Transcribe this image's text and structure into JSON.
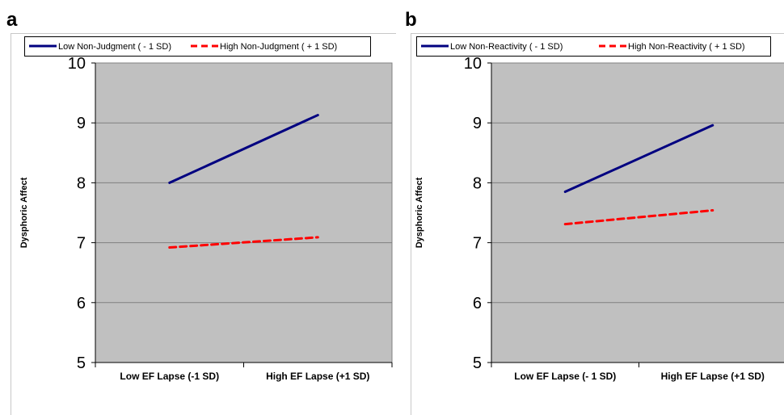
{
  "chart_data": [
    {
      "panel_label": "a",
      "type": "line",
      "categories": [
        "Low EF Lapse (-1 SD)",
        "High EF Lapse (+1 SD)"
      ],
      "series": [
        {
          "name": "Low Non-Judgment ( - 1 SD)",
          "values": [
            8.0,
            9.13
          ],
          "color": "#000080",
          "dash": "solid"
        },
        {
          "name": "High Non-Judgment ( + 1 SD)",
          "values": [
            6.92,
            7.09
          ],
          "color": "#ff0000",
          "dash": "dashed"
        }
      ],
      "xlabel": "",
      "ylabel": "Dysphoric Affect",
      "ylim": [
        5,
        10
      ],
      "yticks": [
        "5",
        "6",
        "7",
        "8",
        "9",
        "10"
      ],
      "grid": true,
      "legend": "top"
    },
    {
      "panel_label": "b",
      "type": "line",
      "categories": [
        "Low EF Lapse (- 1 SD)",
        "High EF Lapse (+1 SD)"
      ],
      "series": [
        {
          "name": "Low Non-Reactivity ( - 1 SD)",
          "values": [
            7.85,
            8.96
          ],
          "color": "#000080",
          "dash": "solid"
        },
        {
          "name": "High Non-Reactivity ( + 1 SD)",
          "values": [
            7.31,
            7.54
          ],
          "color": "#ff0000",
          "dash": "dashed"
        }
      ],
      "xlabel": "",
      "ylabel": "Dysphoric Affect",
      "ylim": [
        5,
        10
      ],
      "yticks": [
        "5",
        "6",
        "7",
        "8",
        "9",
        "10"
      ],
      "grid": true,
      "legend": "top"
    }
  ]
}
